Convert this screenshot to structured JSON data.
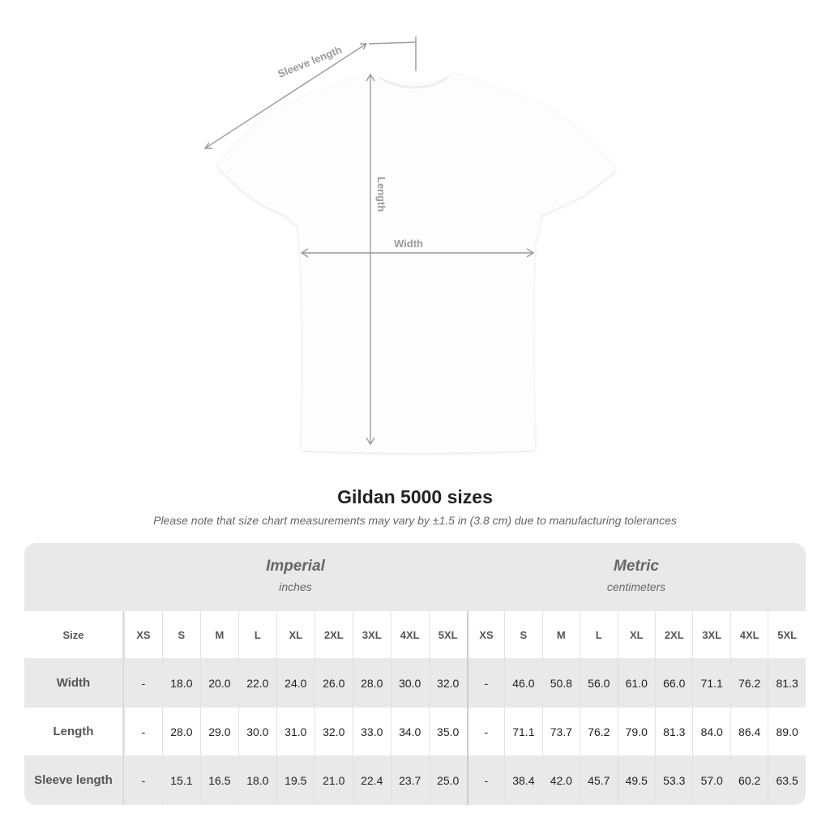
{
  "diagram": {
    "sleeve_label": "Sleeve length",
    "length_label": "Length",
    "width_label": "Width",
    "shirt_color": "#ffffff",
    "measure_color": "#9a9a9a"
  },
  "title": "Gildan 5000 sizes",
  "note": "Please note that size chart measurements may vary by ±1.5 in (3.8 cm) due to manufacturing tolerances",
  "imperial": {
    "name": "Imperial",
    "unit": "inches"
  },
  "metric": {
    "name": "Metric",
    "unit": "centimeters"
  },
  "sizes": [
    "XS",
    "S",
    "M",
    "L",
    "XL",
    "2XL",
    "3XL",
    "4XL",
    "5XL"
  ],
  "rows": [
    {
      "label": "Size"
    },
    {
      "label": "Width",
      "imperial": [
        "-",
        "18.0",
        "20.0",
        "22.0",
        "24.0",
        "26.0",
        "28.0",
        "30.0",
        "32.0"
      ],
      "metric": [
        "-",
        "46.0",
        "50.8",
        "56.0",
        "61.0",
        "66.0",
        "71.1",
        "76.2",
        "81.3"
      ]
    },
    {
      "label": "Length",
      "imperial": [
        "-",
        "28.0",
        "29.0",
        "30.0",
        "31.0",
        "32.0",
        "33.0",
        "34.0",
        "35.0"
      ],
      "metric": [
        "-",
        "71.1",
        "73.7",
        "76.2",
        "79.0",
        "81.3",
        "84.0",
        "86.4",
        "89.0"
      ]
    },
    {
      "label": "Sleeve length",
      "imperial": [
        "-",
        "15.1",
        "16.5",
        "18.0",
        "19.5",
        "21.0",
        "22.4",
        "23.7",
        "25.0"
      ],
      "metric": [
        "-",
        "38.4",
        "42.0",
        "45.7",
        "49.5",
        "53.3",
        "57.0",
        "60.2",
        "63.5"
      ]
    }
  ]
}
